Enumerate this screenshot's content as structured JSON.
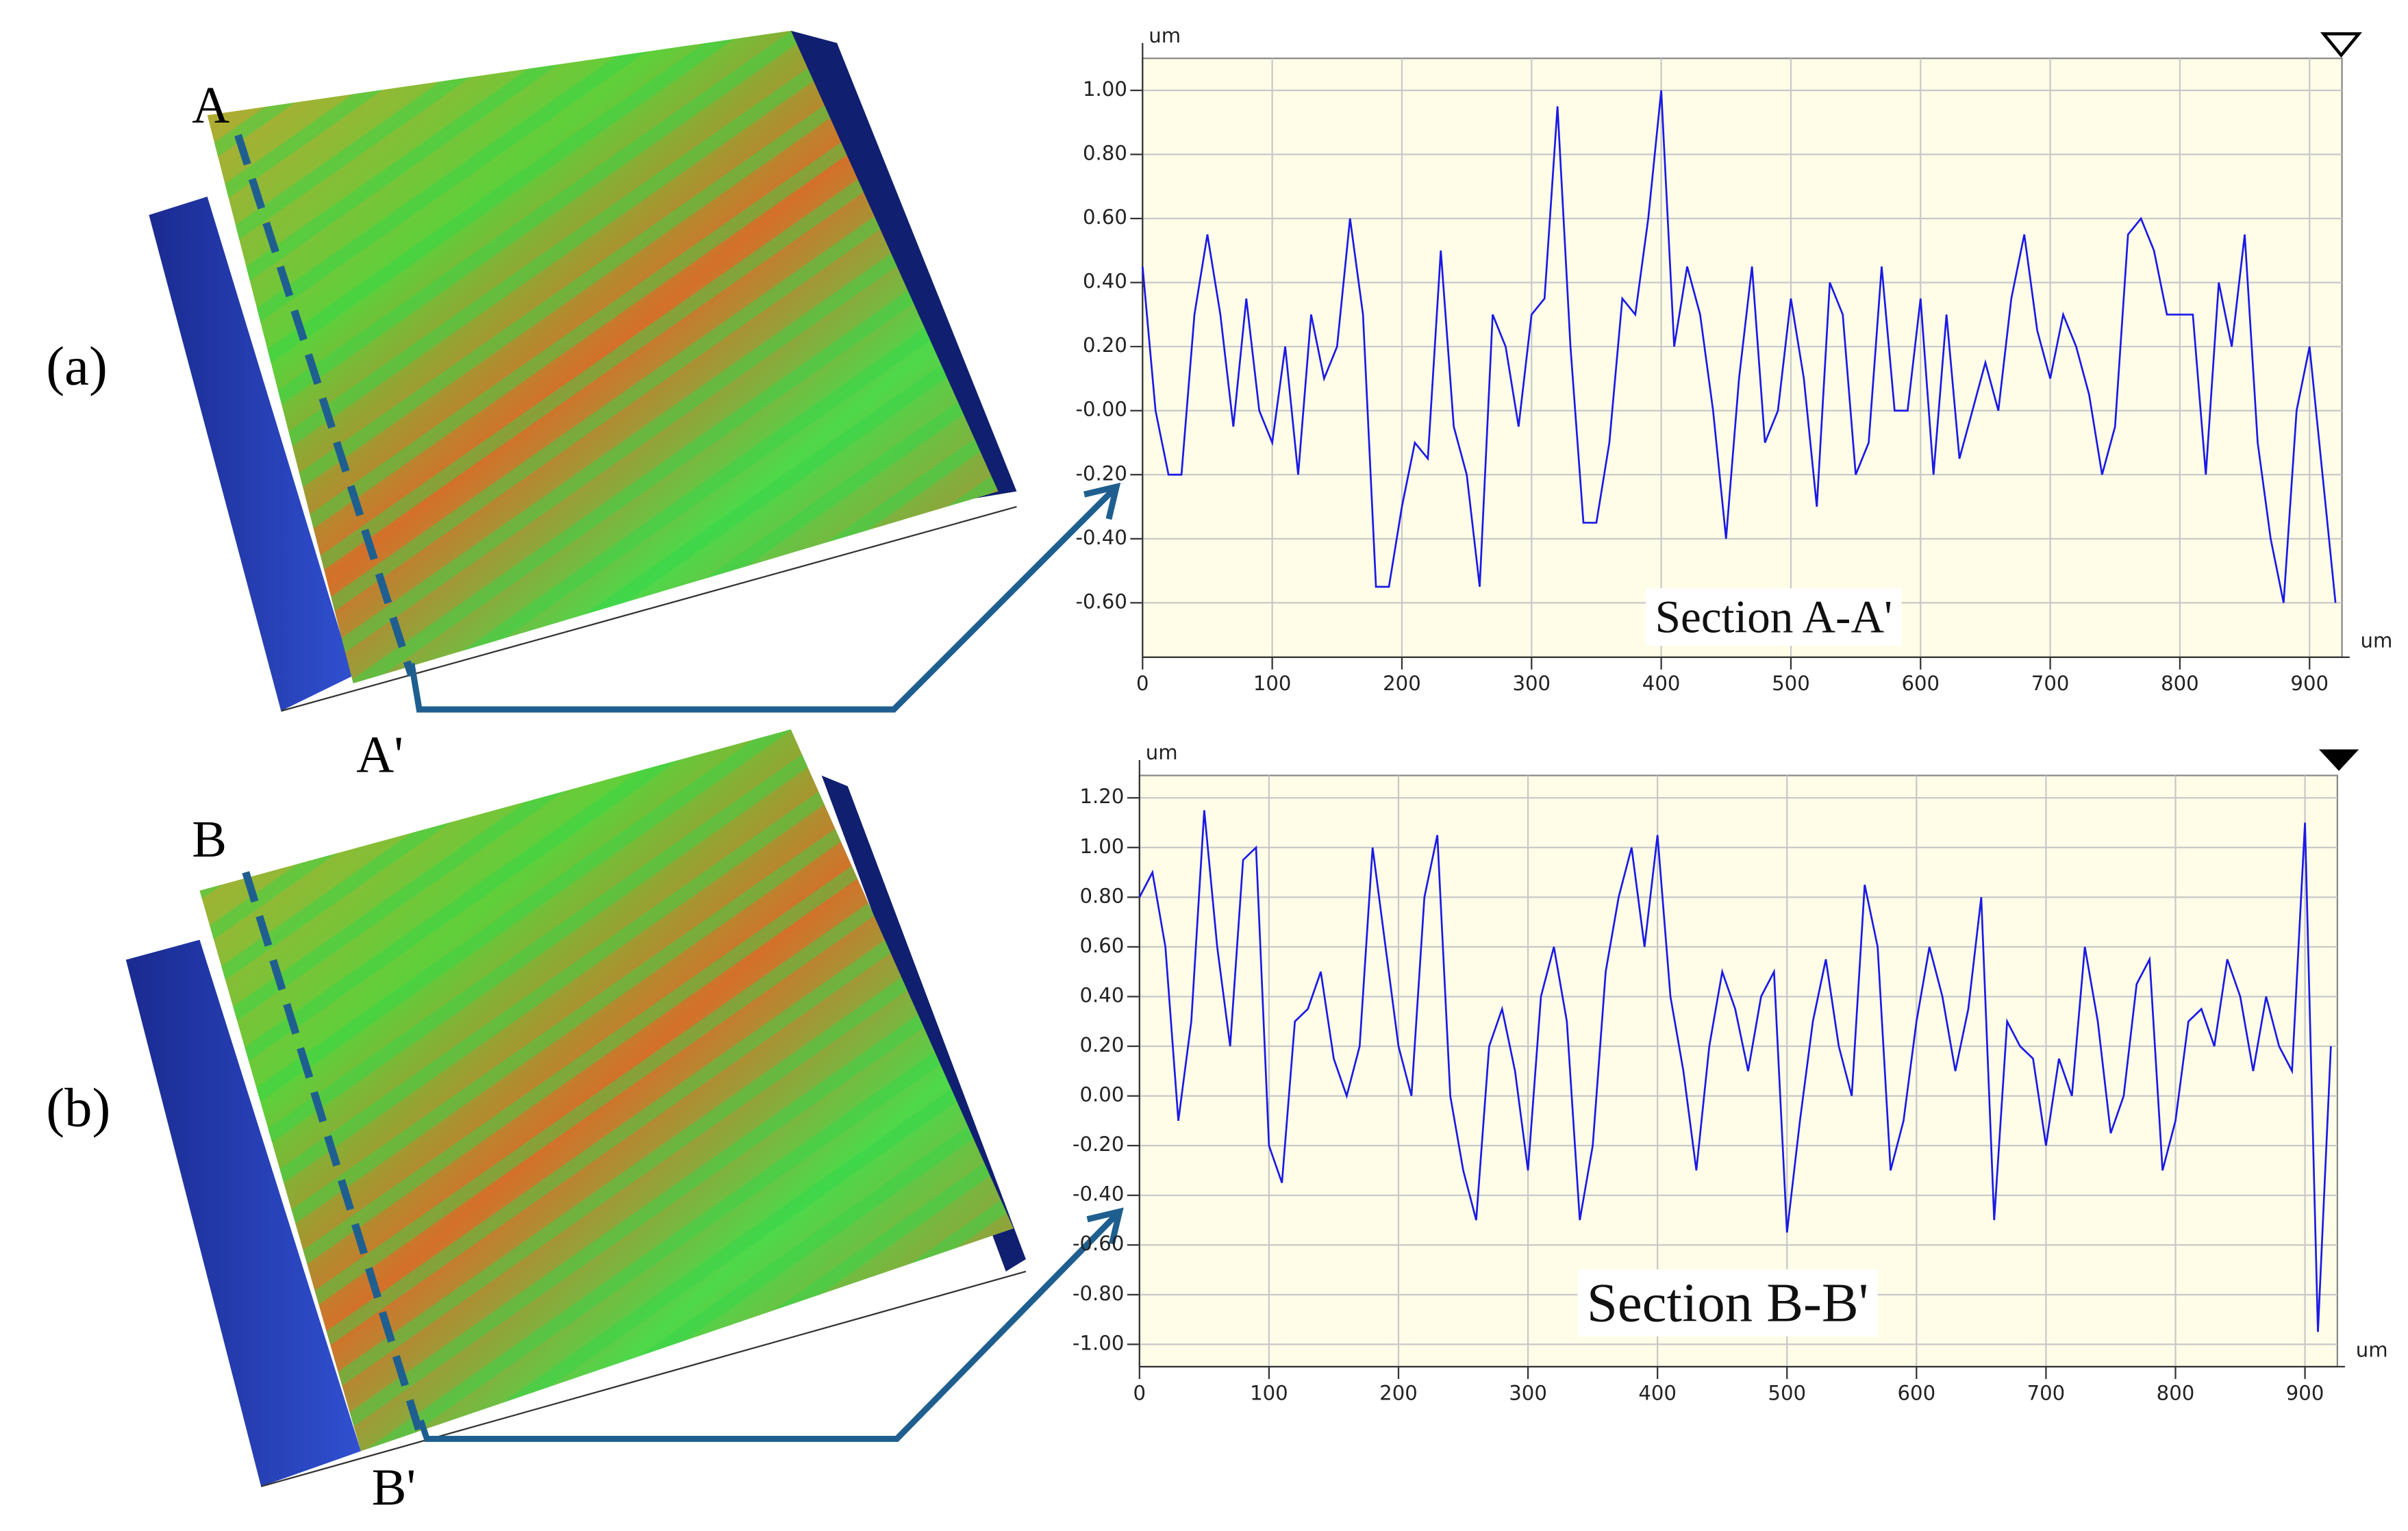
{
  "panels": [
    {
      "label": "(a)",
      "start": "A",
      "end": "A'"
    },
    {
      "label": "(b)",
      "start": "B",
      "end": "B'"
    }
  ],
  "chart_data": [
    {
      "type": "line",
      "annotation": "Section A-A'",
      "y_label": "um",
      "x_label": "um",
      "xlim": [
        0,
        925
      ],
      "xticks": [
        0,
        100,
        200,
        300,
        400,
        500,
        600,
        700,
        800,
        900
      ],
      "ylim": [
        -0.77,
        1.1
      ],
      "yticks": [
        {
          "value": -0.6,
          "label": "-0.60"
        },
        {
          "value": -0.4,
          "label": "-0.40"
        },
        {
          "value": -0.2,
          "label": "-0.20"
        },
        {
          "value": 0,
          "label": "-0.00"
        },
        {
          "value": 0.2,
          "label": "0.20"
        },
        {
          "value": 0.4,
          "label": "0.40"
        },
        {
          "value": 0.6,
          "label": "0.60"
        },
        {
          "value": 0.8,
          "label": "0.80"
        },
        {
          "value": 1.0,
          "label": "1.00"
        }
      ],
      "grid": true,
      "x": [
        0,
        10,
        20,
        30,
        40,
        50,
        60,
        70,
        80,
        90,
        100,
        110,
        120,
        130,
        140,
        150,
        160,
        170,
        180,
        190,
        200,
        210,
        220,
        230,
        240,
        250,
        260,
        270,
        280,
        290,
        300,
        310,
        320,
        330,
        340,
        350,
        360,
        370,
        380,
        390,
        400,
        410,
        420,
        430,
        440,
        450,
        460,
        470,
        480,
        490,
        500,
        510,
        520,
        530,
        540,
        550,
        560,
        570,
        580,
        590,
        600,
        610,
        620,
        630,
        640,
        650,
        660,
        670,
        680,
        690,
        700,
        710,
        720,
        730,
        740,
        750,
        760,
        770,
        780,
        790,
        800,
        810,
        820,
        830,
        840,
        850,
        860,
        870,
        880,
        890,
        900,
        910,
        920
      ],
      "series": [
        {
          "color": "#1a1ae6",
          "values": [
            0.45,
            0.0,
            -0.2,
            -0.2,
            0.3,
            0.55,
            0.3,
            -0.05,
            0.35,
            0.0,
            -0.1,
            0.2,
            -0.2,
            0.3,
            0.1,
            0.2,
            0.6,
            0.3,
            -0.55,
            -0.55,
            -0.3,
            -0.1,
            -0.15,
            0.5,
            -0.05,
            -0.2,
            -0.55,
            0.3,
            0.2,
            -0.05,
            0.3,
            0.35,
            0.95,
            0.2,
            -0.35,
            -0.35,
            -0.1,
            0.35,
            0.3,
            0.6,
            1.0,
            0.2,
            0.45,
            0.3,
            0.0,
            -0.4,
            0.1,
            0.45,
            -0.1,
            0.0,
            0.35,
            0.1,
            -0.3,
            0.4,
            0.3,
            -0.2,
            -0.1,
            0.45,
            0.0,
            0.0,
            0.35,
            -0.2,
            0.3,
            -0.15,
            0.0,
            0.15,
            0.0,
            0.35,
            0.55,
            0.25,
            0.1,
            0.3,
            0.2,
            0.05,
            -0.2,
            -0.05,
            0.55,
            0.6,
            0.5,
            0.3,
            0.3,
            0.3,
            -0.2,
            0.4,
            0.2,
            0.55,
            -0.1,
            -0.4,
            -0.6,
            0.0,
            0.2,
            -0.2,
            -0.6
          ]
        }
      ]
    },
    {
      "type": "line",
      "annotation": "Section B-B'",
      "y_label": "um",
      "x_label": "um",
      "xlim": [
        0,
        925
      ],
      "xticks": [
        0,
        100,
        200,
        300,
        400,
        500,
        600,
        700,
        800,
        900
      ],
      "ylim": [
        -1.09,
        1.29
      ],
      "yticks": [
        {
          "value": -1.0,
          "label": "-1.00"
        },
        {
          "value": -0.8,
          "label": "-0.80"
        },
        {
          "value": -0.6,
          "label": "-0.60"
        },
        {
          "value": -0.4,
          "label": "-0.40"
        },
        {
          "value": -0.2,
          "label": "-0.20"
        },
        {
          "value": 0,
          "label": "0.00"
        },
        {
          "value": 0.2,
          "label": "0.20"
        },
        {
          "value": 0.4,
          "label": "0.40"
        },
        {
          "value": 0.6,
          "label": "0.60"
        },
        {
          "value": 0.8,
          "label": "0.80"
        },
        {
          "value": 1.0,
          "label": "1.00"
        },
        {
          "value": 1.2,
          "label": "1.20"
        }
      ],
      "grid": true,
      "x": [
        0,
        10,
        20,
        30,
        40,
        50,
        60,
        70,
        80,
        90,
        100,
        110,
        120,
        130,
        140,
        150,
        160,
        170,
        180,
        190,
        200,
        210,
        220,
        230,
        240,
        250,
        260,
        270,
        280,
        290,
        300,
        310,
        320,
        330,
        340,
        350,
        360,
        370,
        380,
        390,
        400,
        410,
        420,
        430,
        440,
        450,
        460,
        470,
        480,
        490,
        500,
        510,
        520,
        530,
        540,
        550,
        560,
        570,
        580,
        590,
        600,
        610,
        620,
        630,
        640,
        650,
        660,
        670,
        680,
        690,
        700,
        710,
        720,
        730,
        740,
        750,
        760,
        770,
        780,
        790,
        800,
        810,
        820,
        830,
        840,
        850,
        860,
        870,
        880,
        890,
        900,
        910,
        920
      ],
      "series": [
        {
          "color": "#1a1ae6",
          "values": [
            0.8,
            0.9,
            0.6,
            -0.1,
            0.3,
            1.15,
            0.6,
            0.2,
            0.95,
            1.0,
            -0.2,
            -0.35,
            0.3,
            0.35,
            0.5,
            0.15,
            0.0,
            0.2,
            1.0,
            0.6,
            0.2,
            0.0,
            0.8,
            1.05,
            0.0,
            -0.3,
            -0.5,
            0.2,
            0.35,
            0.1,
            -0.3,
            0.4,
            0.6,
            0.3,
            -0.5,
            -0.2,
            0.5,
            0.8,
            1.0,
            0.6,
            1.05,
            0.4,
            0.1,
            -0.3,
            0.2,
            0.5,
            0.35,
            0.1,
            0.4,
            0.5,
            -0.55,
            -0.1,
            0.3,
            0.55,
            0.2,
            0.0,
            0.85,
            0.6,
            -0.3,
            -0.1,
            0.3,
            0.6,
            0.4,
            0.1,
            0.35,
            0.8,
            -0.5,
            0.3,
            0.2,
            0.15,
            -0.2,
            0.15,
            0.0,
            0.6,
            0.3,
            -0.15,
            0.0,
            0.45,
            0.55,
            -0.3,
            -0.1,
            0.3,
            0.35,
            0.2,
            0.55,
            0.4,
            0.1,
            0.4,
            0.2,
            0.1,
            1.1,
            -0.95,
            0.2
          ]
        }
      ]
    }
  ]
}
